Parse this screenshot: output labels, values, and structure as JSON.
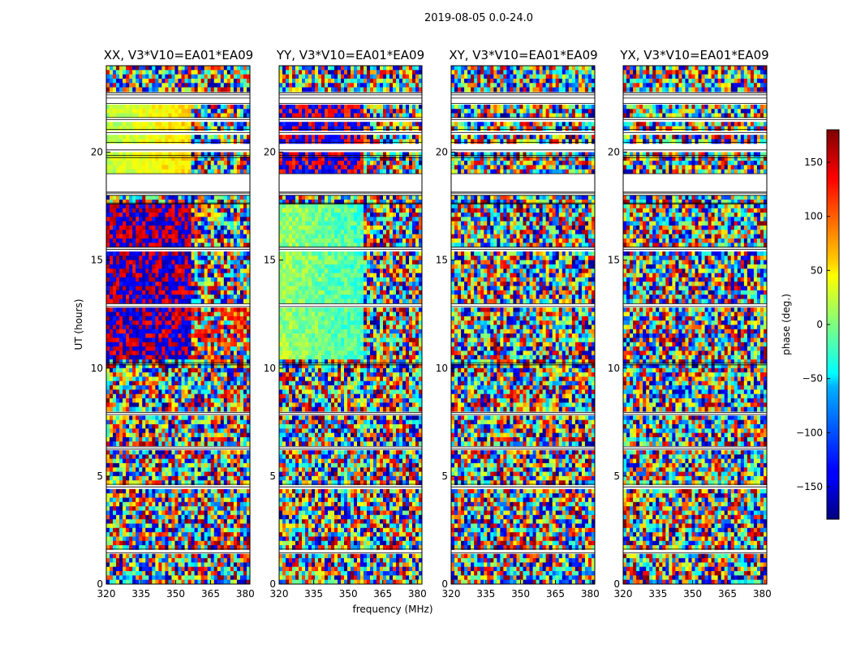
{
  "figure": {
    "title": "2019-08-05 0.0-24.0",
    "xlabel": "frequency (MHz)",
    "ylabel": "UT (hours)"
  },
  "colorbar": {
    "label": "phase (deg.)",
    "range": [
      -180,
      180
    ],
    "ticks": [
      150,
      100,
      50,
      0,
      -50,
      -100,
      -150
    ],
    "tick_labels": [
      "150",
      "100",
      "50",
      "0",
      "−50",
      "−100",
      "−150"
    ],
    "colormap": "jet"
  },
  "chart_data": {
    "type": "heatmap",
    "x_range_mhz": [
      320,
      382
    ],
    "y_range_hours": [
      0,
      24
    ],
    "x_ticks": [
      320,
      335,
      350,
      365,
      380
    ],
    "y_ticks": [
      0,
      5,
      10,
      15,
      20
    ],
    "flagged_hours": [
      [
        1.45,
        1.62
      ],
      [
        4.5,
        4.62
      ],
      [
        6.25,
        6.35
      ],
      [
        7.85,
        7.95
      ],
      [
        10.15,
        10.25
      ],
      [
        12.85,
        12.98
      ],
      [
        15.5,
        15.6
      ],
      [
        17.6,
        17.65
      ],
      [
        18.0,
        18.1
      ],
      [
        18.15,
        19.0
      ],
      [
        19.75,
        19.85
      ],
      [
        20.1,
        20.45
      ],
      [
        20.9,
        21.05
      ],
      [
        21.5,
        21.6
      ],
      [
        22.25,
        22.5
      ],
      [
        22.65,
        22.75
      ]
    ],
    "panels": [
      {
        "id": "xx",
        "title": "XX, V3*V10=EA01*EA09",
        "mode": "xx"
      },
      {
        "id": "yy",
        "title": "YY, V3*V10=EA01*EA09",
        "mode": "yy"
      },
      {
        "id": "xy",
        "title": "XY, V3*V10=EA01*EA09",
        "mode": "noise"
      },
      {
        "id": "yx",
        "title": "YX, V3*V10=EA01*EA09",
        "mode": "noise"
      }
    ]
  }
}
